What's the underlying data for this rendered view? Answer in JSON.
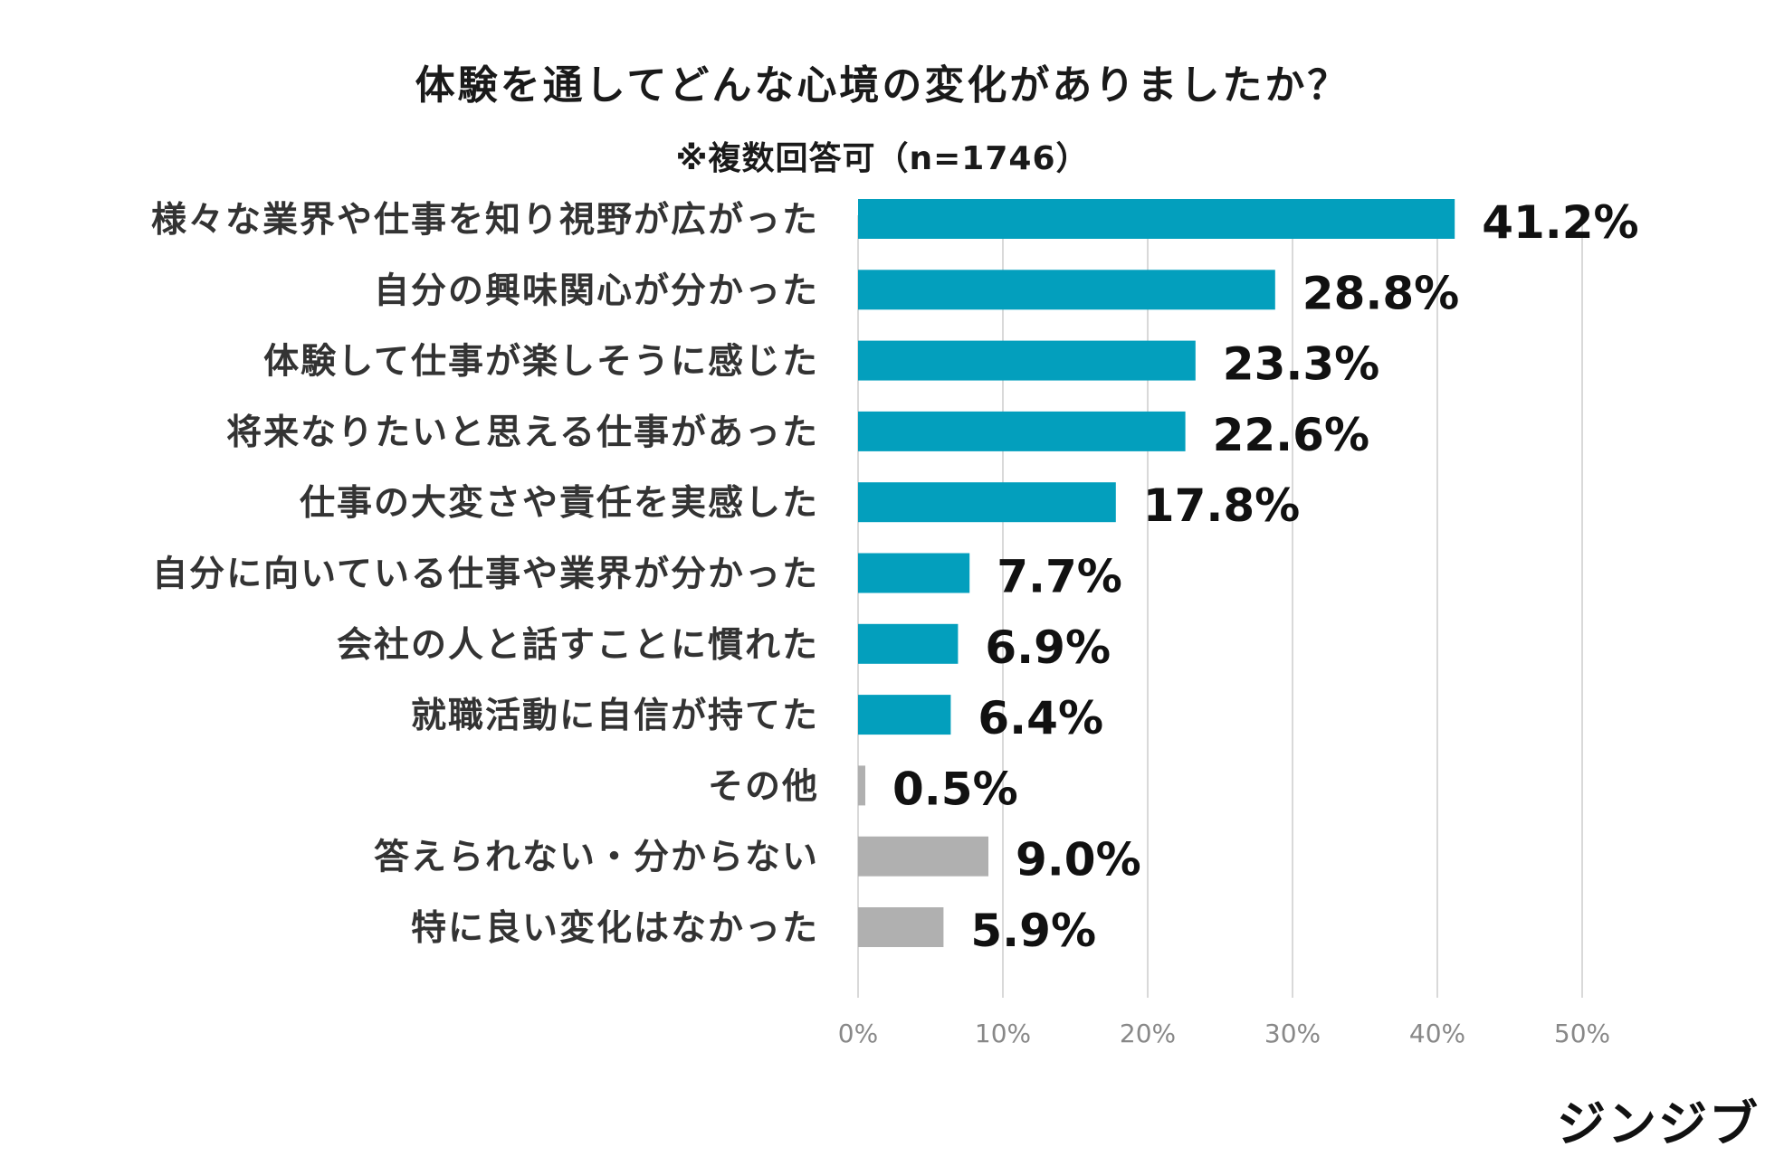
{
  "chart_data": {
    "type": "bar",
    "orientation": "horizontal",
    "title": "体験を通してどんな心境の変化がありましたか？",
    "subtitle": "※複数回答可（n=1746）",
    "categories": [
      "様々な業界や仕事を知り視野が広がった",
      "自分の興味関心が分かった",
      "体験して仕事が楽しそうに感じた",
      "将来なりたいと思える仕事があった",
      "仕事の大変さや責任を実感した",
      "自分に向いている仕事や業界が分かった",
      "会社の人と話すことに慣れた",
      "就職活動に自信が持てた",
      "その他",
      "答えられない・分からない",
      "特に良い変化はなかった"
    ],
    "values": [
      41.2,
      28.8,
      23.3,
      22.6,
      17.8,
      7.7,
      6.9,
      6.4,
      0.5,
      9.0,
      5.9
    ],
    "value_labels": [
      "41.2%",
      "28.8%",
      "23.3%",
      "22.6%",
      "17.8%",
      "7.7%",
      "6.9%",
      "6.4%",
      "0.5%",
      "9.0%",
      "5.9%"
    ],
    "bar_colors": [
      "#039fbd",
      "#039fbd",
      "#039fbd",
      "#039fbd",
      "#039fbd",
      "#039fbd",
      "#039fbd",
      "#039fbd",
      "#b0b0b0",
      "#b0b0b0",
      "#b0b0b0"
    ],
    "xlim": [
      0,
      50
    ],
    "xticks": [
      0,
      10,
      20,
      30,
      40,
      50
    ],
    "xtick_labels": [
      "0%",
      "10%",
      "20%",
      "30%",
      "40%",
      "50%"
    ],
    "grid": true,
    "gridline_color": "#d9d9d9"
  },
  "brand": {
    "logo_text": "ジンジブ"
  }
}
